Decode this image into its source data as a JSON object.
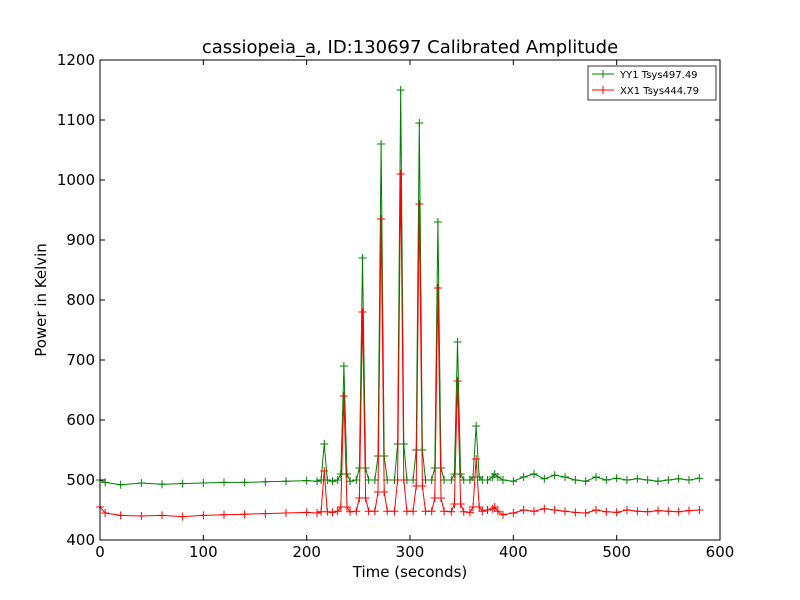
{
  "chart_data": {
    "type": "line",
    "title": "cassiopeia_a, ID:130697 Calibrated Amplitude",
    "xlabel": "Time (seconds)",
    "ylabel": "Power in Kelvin",
    "xlim": [
      0,
      600
    ],
    "ylim": [
      400,
      1200
    ],
    "xticks": [
      "0",
      "100",
      "200",
      "300",
      "400",
      "500",
      "600"
    ],
    "yticks": [
      "400",
      "500",
      "600",
      "700",
      "800",
      "900",
      "1000",
      "1100",
      "1200"
    ],
    "grid": false,
    "legend_position": "top-right",
    "marker": "+",
    "series": [
      {
        "name": "YY1 Tsys497.49",
        "color": "#008000",
        "x": [
          0,
          5,
          20,
          40,
          60,
          80,
          100,
          120,
          140,
          160,
          180,
          200,
          210,
          214,
          217,
          220,
          225,
          230,
          233,
          236,
          239,
          242,
          248,
          251,
          254,
          257,
          260,
          266,
          269,
          272,
          275,
          278,
          285,
          288,
          291,
          294,
          297,
          303,
          306,
          309,
          312,
          315,
          321,
          324,
          327,
          330,
          333,
          340,
          343,
          346,
          349,
          352,
          358,
          361,
          364,
          367,
          370,
          375,
          380,
          382,
          385,
          390,
          400,
          410,
          420,
          430,
          440,
          450,
          460,
          470,
          480,
          490,
          500,
          510,
          520,
          530,
          540,
          550,
          560,
          570,
          580
        ],
        "y": [
          500,
          496,
          492,
          495,
          493,
          494,
          495,
          496,
          496,
          497,
          498,
          499,
          498,
          500,
          560,
          500,
          498,
          500,
          510,
          690,
          510,
          498,
          500,
          520,
          870,
          520,
          500,
          500,
          540,
          1060,
          540,
          500,
          500,
          560,
          1150,
          560,
          500,
          500,
          550,
          1095,
          550,
          500,
          500,
          520,
          930,
          520,
          500,
          500,
          510,
          730,
          510,
          500,
          500,
          505,
          590,
          505,
          500,
          500,
          505,
          510,
          505,
          500,
          498,
          505,
          510,
          502,
          508,
          505,
          500,
          498,
          505,
          500,
          503,
          500,
          502,
          500,
          498,
          500,
          502,
          500,
          503
        ]
      },
      {
        "name": "XX1 Tsys444.79",
        "color": "#ff0000",
        "x": [
          0,
          5,
          20,
          40,
          60,
          80,
          100,
          120,
          140,
          160,
          180,
          200,
          210,
          214,
          217,
          220,
          225,
          230,
          233,
          236,
          239,
          242,
          248,
          251,
          254,
          257,
          260,
          266,
          269,
          272,
          275,
          278,
          285,
          288,
          291,
          294,
          297,
          303,
          306,
          309,
          312,
          315,
          321,
          324,
          327,
          330,
          333,
          340,
          343,
          346,
          349,
          352,
          358,
          361,
          364,
          367,
          370,
          375,
          380,
          382,
          385,
          390,
          400,
          410,
          420,
          430,
          440,
          450,
          460,
          470,
          480,
          490,
          500,
          510,
          520,
          530,
          540,
          550,
          560,
          570,
          580
        ],
        "y": [
          455,
          445,
          441,
          440,
          441,
          439,
          441,
          442,
          443,
          444,
          445,
          446,
          445,
          447,
          515,
          447,
          446,
          448,
          455,
          640,
          455,
          447,
          448,
          470,
          780,
          470,
          448,
          448,
          480,
          935,
          480,
          448,
          448,
          500,
          1010,
          500,
          448,
          448,
          490,
          960,
          490,
          448,
          448,
          470,
          820,
          470,
          448,
          447,
          460,
          665,
          460,
          447,
          446,
          455,
          535,
          455,
          448,
          450,
          452,
          455,
          448,
          442,
          445,
          450,
          448,
          452,
          450,
          448,
          446,
          445,
          450,
          447,
          446,
          450,
          448,
          447,
          449,
          448,
          447,
          449,
          450
        ]
      }
    ]
  }
}
